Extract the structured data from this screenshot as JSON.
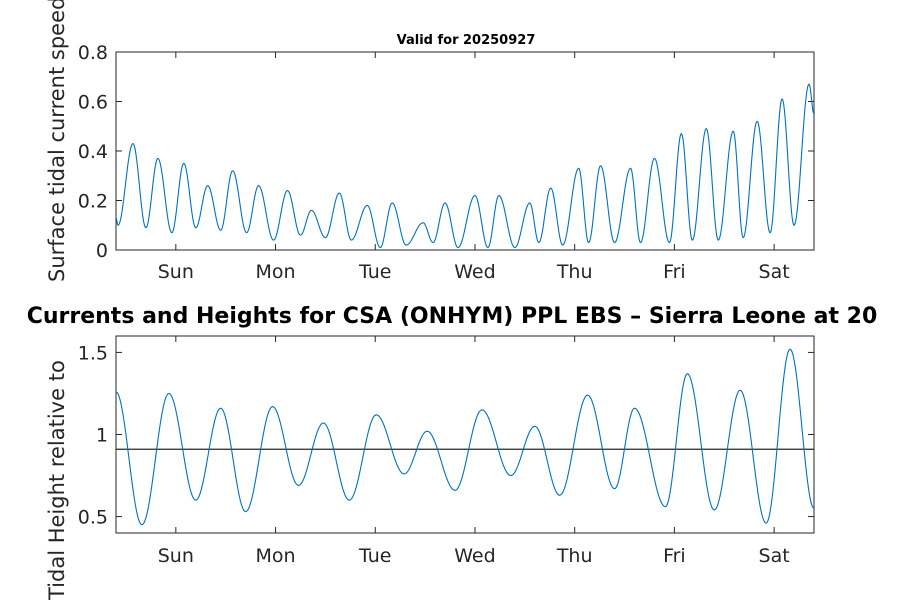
{
  "chart_data": [
    {
      "type": "line",
      "title": "Valid for 20250927",
      "ylabel": "Surface tidal current speed, kn",
      "xlabel": "",
      "ylim": [
        0,
        0.8
      ],
      "yticks": [
        "0",
        "0.2",
        "0.4",
        "0.6",
        "0.8"
      ],
      "ytick_values": [
        0,
        0.2,
        0.4,
        0.6,
        0.8
      ],
      "xticks": [
        "Sun",
        "Mon",
        "Tue",
        "Wed",
        "Thu",
        "Fri",
        "Sat"
      ],
      "xlim_days": [
        -0.6,
        6.4
      ],
      "grid": false,
      "series_color": "#0072BD",
      "extrema_days": [
        [
          -0.6,
          0.13
        ],
        [
          -0.58,
          0.1
        ],
        [
          -0.43,
          0.43
        ],
        [
          -0.3,
          0.09
        ],
        [
          -0.18,
          0.37
        ],
        [
          -0.04,
          0.07
        ],
        [
          0.08,
          0.35
        ],
        [
          0.2,
          0.09
        ],
        [
          0.32,
          0.26
        ],
        [
          0.45,
          0.08
        ],
        [
          0.57,
          0.32
        ],
        [
          0.71,
          0.07
        ],
        [
          0.83,
          0.26
        ],
        [
          0.98,
          0.04
        ],
        [
          1.12,
          0.24
        ],
        [
          1.25,
          0.06
        ],
        [
          1.36,
          0.16
        ],
        [
          1.5,
          0.05
        ],
        [
          1.64,
          0.23
        ],
        [
          1.76,
          0.04
        ],
        [
          1.92,
          0.18
        ],
        [
          2.05,
          0.01
        ],
        [
          2.17,
          0.19
        ],
        [
          2.31,
          0.02
        ],
        [
          2.48,
          0.11
        ],
        [
          2.58,
          0.03
        ],
        [
          2.7,
          0.19
        ],
        [
          2.83,
          0.01
        ],
        [
          3.0,
          0.22
        ],
        [
          3.13,
          0.01
        ],
        [
          3.24,
          0.22
        ],
        [
          3.4,
          0.01
        ],
        [
          3.55,
          0.19
        ],
        [
          3.64,
          0.03
        ],
        [
          3.76,
          0.25
        ],
        [
          3.88,
          0.02
        ],
        [
          4.04,
          0.33
        ],
        [
          4.14,
          0.03
        ],
        [
          4.26,
          0.34
        ],
        [
          4.4,
          0.03
        ],
        [
          4.56,
          0.33
        ],
        [
          4.66,
          0.03
        ],
        [
          4.8,
          0.37
        ],
        [
          4.95,
          0.03
        ],
        [
          5.07,
          0.47
        ],
        [
          5.18,
          0.04
        ],
        [
          5.32,
          0.49
        ],
        [
          5.44,
          0.04
        ],
        [
          5.59,
          0.48
        ],
        [
          5.69,
          0.05
        ],
        [
          5.83,
          0.52
        ],
        [
          5.96,
          0.07
        ],
        [
          6.08,
          0.61
        ],
        [
          6.2,
          0.1
        ],
        [
          6.35,
          0.67
        ],
        [
          6.4,
          0.55
        ]
      ]
    },
    {
      "type": "line",
      "title": "Currents and Heights for CSA (ONHYM) PPL EBS  – Sierra Leone at 20",
      "ylabel": "Tidal Height relative to",
      "xlabel": "",
      "ylim": [
        0.4,
        1.6
      ],
      "yticks": [
        "0.5",
        "1",
        "1.5"
      ],
      "ytick_values": [
        0.5,
        1.0,
        1.5
      ],
      "xticks": [
        "Sun",
        "Mon",
        "Tue",
        "Wed",
        "Thu",
        "Fri",
        "Sat"
      ],
      "xlim_days": [
        -0.6,
        6.4
      ],
      "grid": false,
      "reference_level": 0.91,
      "series_color": "#0072BD",
      "extrema_days": [
        [
          -0.6,
          1.26
        ],
        [
          -0.34,
          0.45
        ],
        [
          -0.07,
          1.25
        ],
        [
          0.2,
          0.6
        ],
        [
          0.45,
          1.16
        ],
        [
          0.7,
          0.53
        ],
        [
          0.97,
          1.17
        ],
        [
          1.23,
          0.69
        ],
        [
          1.48,
          1.07
        ],
        [
          1.74,
          0.6
        ],
        [
          2.01,
          1.12
        ],
        [
          2.29,
          0.76
        ],
        [
          2.52,
          1.02
        ],
        [
          2.8,
          0.66
        ],
        [
          3.07,
          1.15
        ],
        [
          3.36,
          0.75
        ],
        [
          3.6,
          1.05
        ],
        [
          3.85,
          0.63
        ],
        [
          4.13,
          1.24
        ],
        [
          4.4,
          0.67
        ],
        [
          4.6,
          1.16
        ],
        [
          4.91,
          0.56
        ],
        [
          5.13,
          1.37
        ],
        [
          5.4,
          0.54
        ],
        [
          5.66,
          1.27
        ],
        [
          5.92,
          0.46
        ],
        [
          6.16,
          1.52
        ],
        [
          6.4,
          0.55
        ]
      ]
    }
  ]
}
